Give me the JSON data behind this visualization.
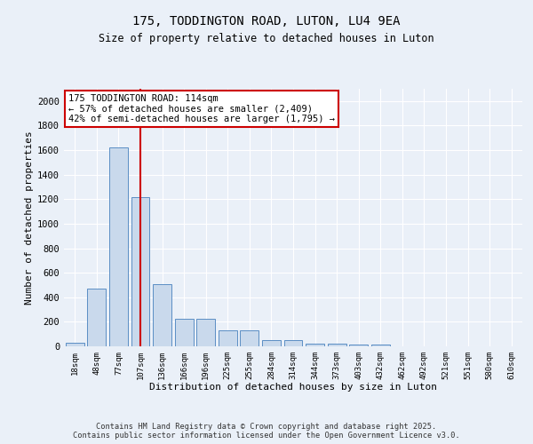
{
  "title1": "175, TODDINGTON ROAD, LUTON, LU4 9EA",
  "title2": "Size of property relative to detached houses in Luton",
  "xlabel": "Distribution of detached houses by size in Luton",
  "ylabel": "Number of detached properties",
  "categories": [
    "18sqm",
    "48sqm",
    "77sqm",
    "107sqm",
    "136sqm",
    "166sqm",
    "196sqm",
    "225sqm",
    "255sqm",
    "284sqm",
    "314sqm",
    "344sqm",
    "373sqm",
    "403sqm",
    "432sqm",
    "462sqm",
    "492sqm",
    "521sqm",
    "551sqm",
    "580sqm",
    "610sqm"
  ],
  "values": [
    30,
    470,
    1620,
    1220,
    510,
    225,
    225,
    130,
    130,
    50,
    50,
    25,
    25,
    18,
    18,
    0,
    0,
    0,
    0,
    0,
    0
  ],
  "bar_color": "#c9d9ec",
  "bar_edge_color": "#5b8ec4",
  "vline_x": 3,
  "vline_color": "#cc0000",
  "annotation_text": "175 TODDINGTON ROAD: 114sqm\n← 57% of detached houses are smaller (2,409)\n42% of semi-detached houses are larger (1,795) →",
  "annotation_box_color": "#cc0000",
  "ylim": [
    0,
    2100
  ],
  "yticks": [
    0,
    200,
    400,
    600,
    800,
    1000,
    1200,
    1400,
    1600,
    1800,
    2000
  ],
  "bg_color": "#eaf0f8",
  "grid_color": "#ffffff",
  "fig_bg_color": "#eaf0f8",
  "footer1": "Contains HM Land Registry data © Crown copyright and database right 2025.",
  "footer2": "Contains public sector information licensed under the Open Government Licence v3.0."
}
